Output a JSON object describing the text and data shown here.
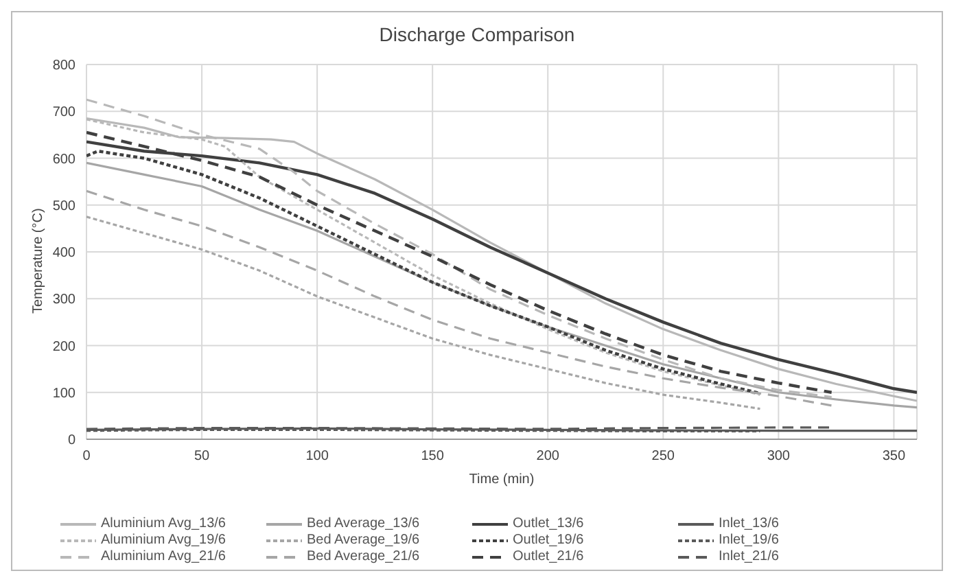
{
  "chart_data": {
    "type": "line",
    "title": "Discharge Comparison",
    "xlabel": "Time (min)",
    "ylabel": "Temperature (°C)",
    "xlim": [
      0,
      360
    ],
    "xticks": [
      0,
      50,
      100,
      150,
      200,
      250,
      300,
      350
    ],
    "ylim": [
      0,
      800
    ],
    "yticks": [
      0,
      100,
      200,
      300,
      400,
      500,
      600,
      700,
      800
    ],
    "grid": true,
    "legend": "bottom",
    "marker": "none",
    "series": [
      {
        "name": "Aluminium Avg_13/6",
        "color": "#b8b8b8",
        "line_style": "solid",
        "x": [
          0,
          25,
          40,
          60,
          80,
          90,
          100,
          125,
          150,
          175,
          200,
          225,
          250,
          275,
          300,
          325,
          350,
          360
        ],
        "values": [
          685,
          665,
          645,
          643,
          640,
          635,
          610,
          555,
          490,
          420,
          355,
          290,
          235,
          190,
          150,
          118,
          92,
          82
        ]
      },
      {
        "name": "Bed Average_13/6",
        "color": "#a6a6a6",
        "line_style": "solid",
        "x": [
          0,
          25,
          50,
          75,
          100,
          125,
          150,
          175,
          200,
          225,
          250,
          275,
          300,
          325,
          350,
          360
        ],
        "values": [
          590,
          565,
          540,
          490,
          445,
          390,
          335,
          285,
          240,
          200,
          160,
          130,
          100,
          85,
          72,
          68
        ]
      },
      {
        "name": "Outlet_13/6",
        "color": "#404040",
        "line_style": "solid",
        "x": [
          0,
          25,
          50,
          75,
          100,
          125,
          150,
          175,
          200,
          225,
          250,
          275,
          300,
          325,
          350,
          360
        ],
        "values": [
          635,
          615,
          605,
          590,
          565,
          525,
          470,
          410,
          355,
          300,
          250,
          205,
          170,
          140,
          108,
          100
        ]
      },
      {
        "name": "Inlet_13/6",
        "color": "#5a5a5a",
        "line_style": "solid",
        "x": [
          0,
          50,
          100,
          150,
          200,
          250,
          300,
          360
        ],
        "values": [
          20,
          22,
          23,
          21,
          20,
          19,
          18,
          18
        ]
      },
      {
        "name": "Aluminium Avg_19/6",
        "color": "#b8b8b8",
        "line_style": "dotted",
        "x": [
          0,
          25,
          50,
          60,
          75,
          100,
          125,
          150,
          175,
          200,
          225,
          250,
          275,
          292
        ],
        "values": [
          683,
          655,
          640,
          625,
          560,
          490,
          420,
          350,
          290,
          235,
          185,
          145,
          115,
          95
        ]
      },
      {
        "name": "Bed Average_19/6",
        "color": "#a6a6a6",
        "line_style": "dotted",
        "x": [
          0,
          25,
          50,
          75,
          100,
          125,
          150,
          175,
          200,
          225,
          250,
          275,
          292
        ],
        "values": [
          475,
          440,
          405,
          360,
          305,
          260,
          215,
          180,
          150,
          120,
          95,
          78,
          65
        ]
      },
      {
        "name": "Outlet_19/6",
        "color": "#404040",
        "line_style": "dotted",
        "x": [
          0,
          5,
          25,
          50,
          75,
          100,
          125,
          150,
          175,
          200,
          225,
          250,
          275,
          292
        ],
        "values": [
          605,
          615,
          600,
          565,
          515,
          455,
          395,
          335,
          285,
          240,
          190,
          150,
          118,
          98
        ]
      },
      {
        "name": "Inlet_19/6",
        "color": "#5a5a5a",
        "line_style": "dotted",
        "x": [
          0,
          50,
          100,
          150,
          200,
          250,
          292
        ],
        "values": [
          18,
          20,
          20,
          19,
          18,
          17,
          17
        ]
      },
      {
        "name": "Aluminium Avg_21/6",
        "color": "#b8b8b8",
        "line_style": "dashed",
        "x": [
          0,
          25,
          50,
          75,
          90,
          100,
          125,
          150,
          175,
          200,
          225,
          250,
          275,
          300,
          323
        ],
        "values": [
          725,
          690,
          650,
          620,
          570,
          530,
          460,
          395,
          320,
          265,
          215,
          170,
          130,
          105,
          90
        ]
      },
      {
        "name": "Bed Average_21/6",
        "color": "#a6a6a6",
        "line_style": "dashed",
        "x": [
          0,
          25,
          50,
          75,
          100,
          125,
          150,
          175,
          200,
          225,
          250,
          275,
          300,
          323
        ],
        "values": [
          530,
          490,
          455,
          410,
          360,
          305,
          255,
          215,
          185,
          155,
          130,
          110,
          92,
          72
        ]
      },
      {
        "name": "Outlet_21/6",
        "color": "#404040",
        "line_style": "dashed",
        "x": [
          0,
          25,
          50,
          75,
          100,
          125,
          150,
          175,
          200,
          225,
          250,
          275,
          300,
          323
        ],
        "values": [
          655,
          625,
          595,
          560,
          500,
          445,
          390,
          330,
          275,
          225,
          180,
          145,
          120,
          100
        ]
      },
      {
        "name": "Inlet_21/6",
        "color": "#5a5a5a",
        "line_style": "dashed",
        "x": [
          0,
          50,
          100,
          150,
          200,
          250,
          300,
          323
        ],
        "values": [
          22,
          24,
          24,
          23,
          22,
          24,
          25,
          25
        ]
      }
    ]
  }
}
